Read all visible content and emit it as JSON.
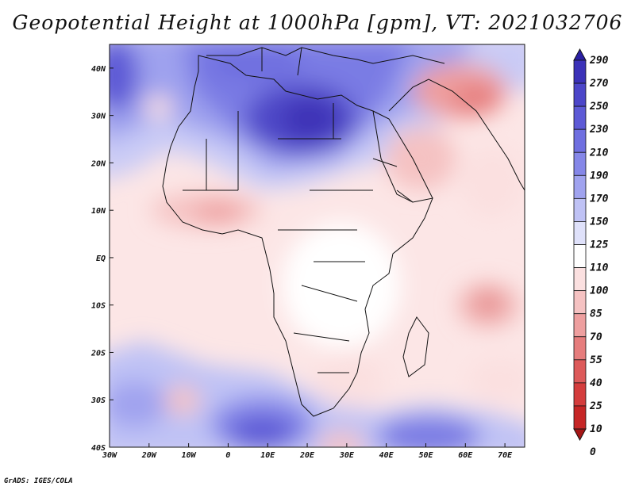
{
  "title": "Geopotential Height at 1000hPa [gpm], VT: 2021032706",
  "credit": "GrADS: IGES/COLA",
  "map": {
    "variable": "Geopotential Height",
    "level": "1000hPa",
    "units": "gpm",
    "valid_time": "2021032706",
    "lon_range": [
      -30,
      75
    ],
    "lat_range": [
      -40,
      45
    ],
    "lon_ticks": [
      {
        "value": -30,
        "label": "30W"
      },
      {
        "value": -20,
        "label": "20W"
      },
      {
        "value": -10,
        "label": "10W"
      },
      {
        "value": 0,
        "label": "0"
      },
      {
        "value": 10,
        "label": "10E"
      },
      {
        "value": 20,
        "label": "20E"
      },
      {
        "value": 30,
        "label": "30E"
      },
      {
        "value": 40,
        "label": "40E"
      },
      {
        "value": 50,
        "label": "50E"
      },
      {
        "value": 60,
        "label": "60E"
      },
      {
        "value": 70,
        "label": "70E"
      }
    ],
    "lat_ticks": [
      {
        "value": 40,
        "label": "40N"
      },
      {
        "value": 30,
        "label": "30N"
      },
      {
        "value": 20,
        "label": "20N"
      },
      {
        "value": 10,
        "label": "10N"
      },
      {
        "value": 0,
        "label": "EQ"
      },
      {
        "value": -10,
        "label": "10S"
      },
      {
        "value": -20,
        "label": "20S"
      },
      {
        "value": -30,
        "label": "30S"
      },
      {
        "value": -40,
        "label": "40S"
      }
    ]
  },
  "colorbar": {
    "levels": [
      290,
      270,
      250,
      230,
      210,
      190,
      170,
      150,
      125,
      110,
      100,
      85,
      70,
      55,
      40,
      25,
      10,
      0
    ],
    "colors": [
      "#2a1fa3",
      "#3b32b8",
      "#4c46c9",
      "#5d5ad6",
      "#6f6fe0",
      "#8587e8",
      "#a0a3ef",
      "#bfc2f5",
      "#dfe1fa",
      "#ffffff",
      "#fbe0e0",
      "#f5c2c2",
      "#ee9f9f",
      "#e67d7d",
      "#dd5a5a",
      "#d43d3d",
      "#c62626",
      "#a51616"
    ]
  }
}
